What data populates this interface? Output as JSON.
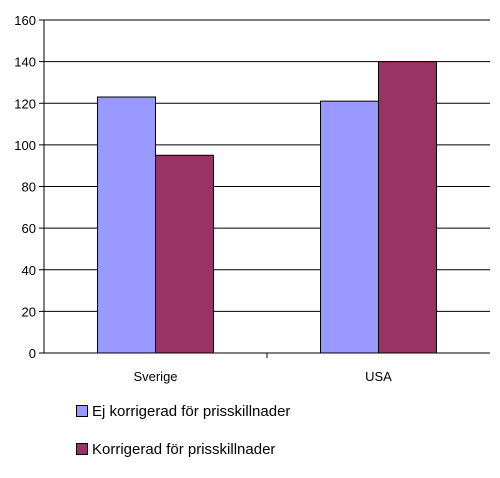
{
  "chart_data": {
    "type": "bar",
    "categories": [
      "Sverige",
      "USA"
    ],
    "series": [
      {
        "name": "Ej korrigerad för prisskillnader",
        "values": [
          123,
          121
        ],
        "color": "#9999ff"
      },
      {
        "name": "Korrigerad för prisskillnader",
        "values": [
          95,
          140
        ],
        "color": "#993366"
      }
    ],
    "ylim": [
      0,
      160
    ],
    "yticks": [
      "0",
      "20",
      "40",
      "60",
      "80",
      "100",
      "120",
      "140",
      "160"
    ],
    "grid": true,
    "legend_position": "bottom-left",
    "title": "",
    "xlabel": "",
    "ylabel": ""
  }
}
